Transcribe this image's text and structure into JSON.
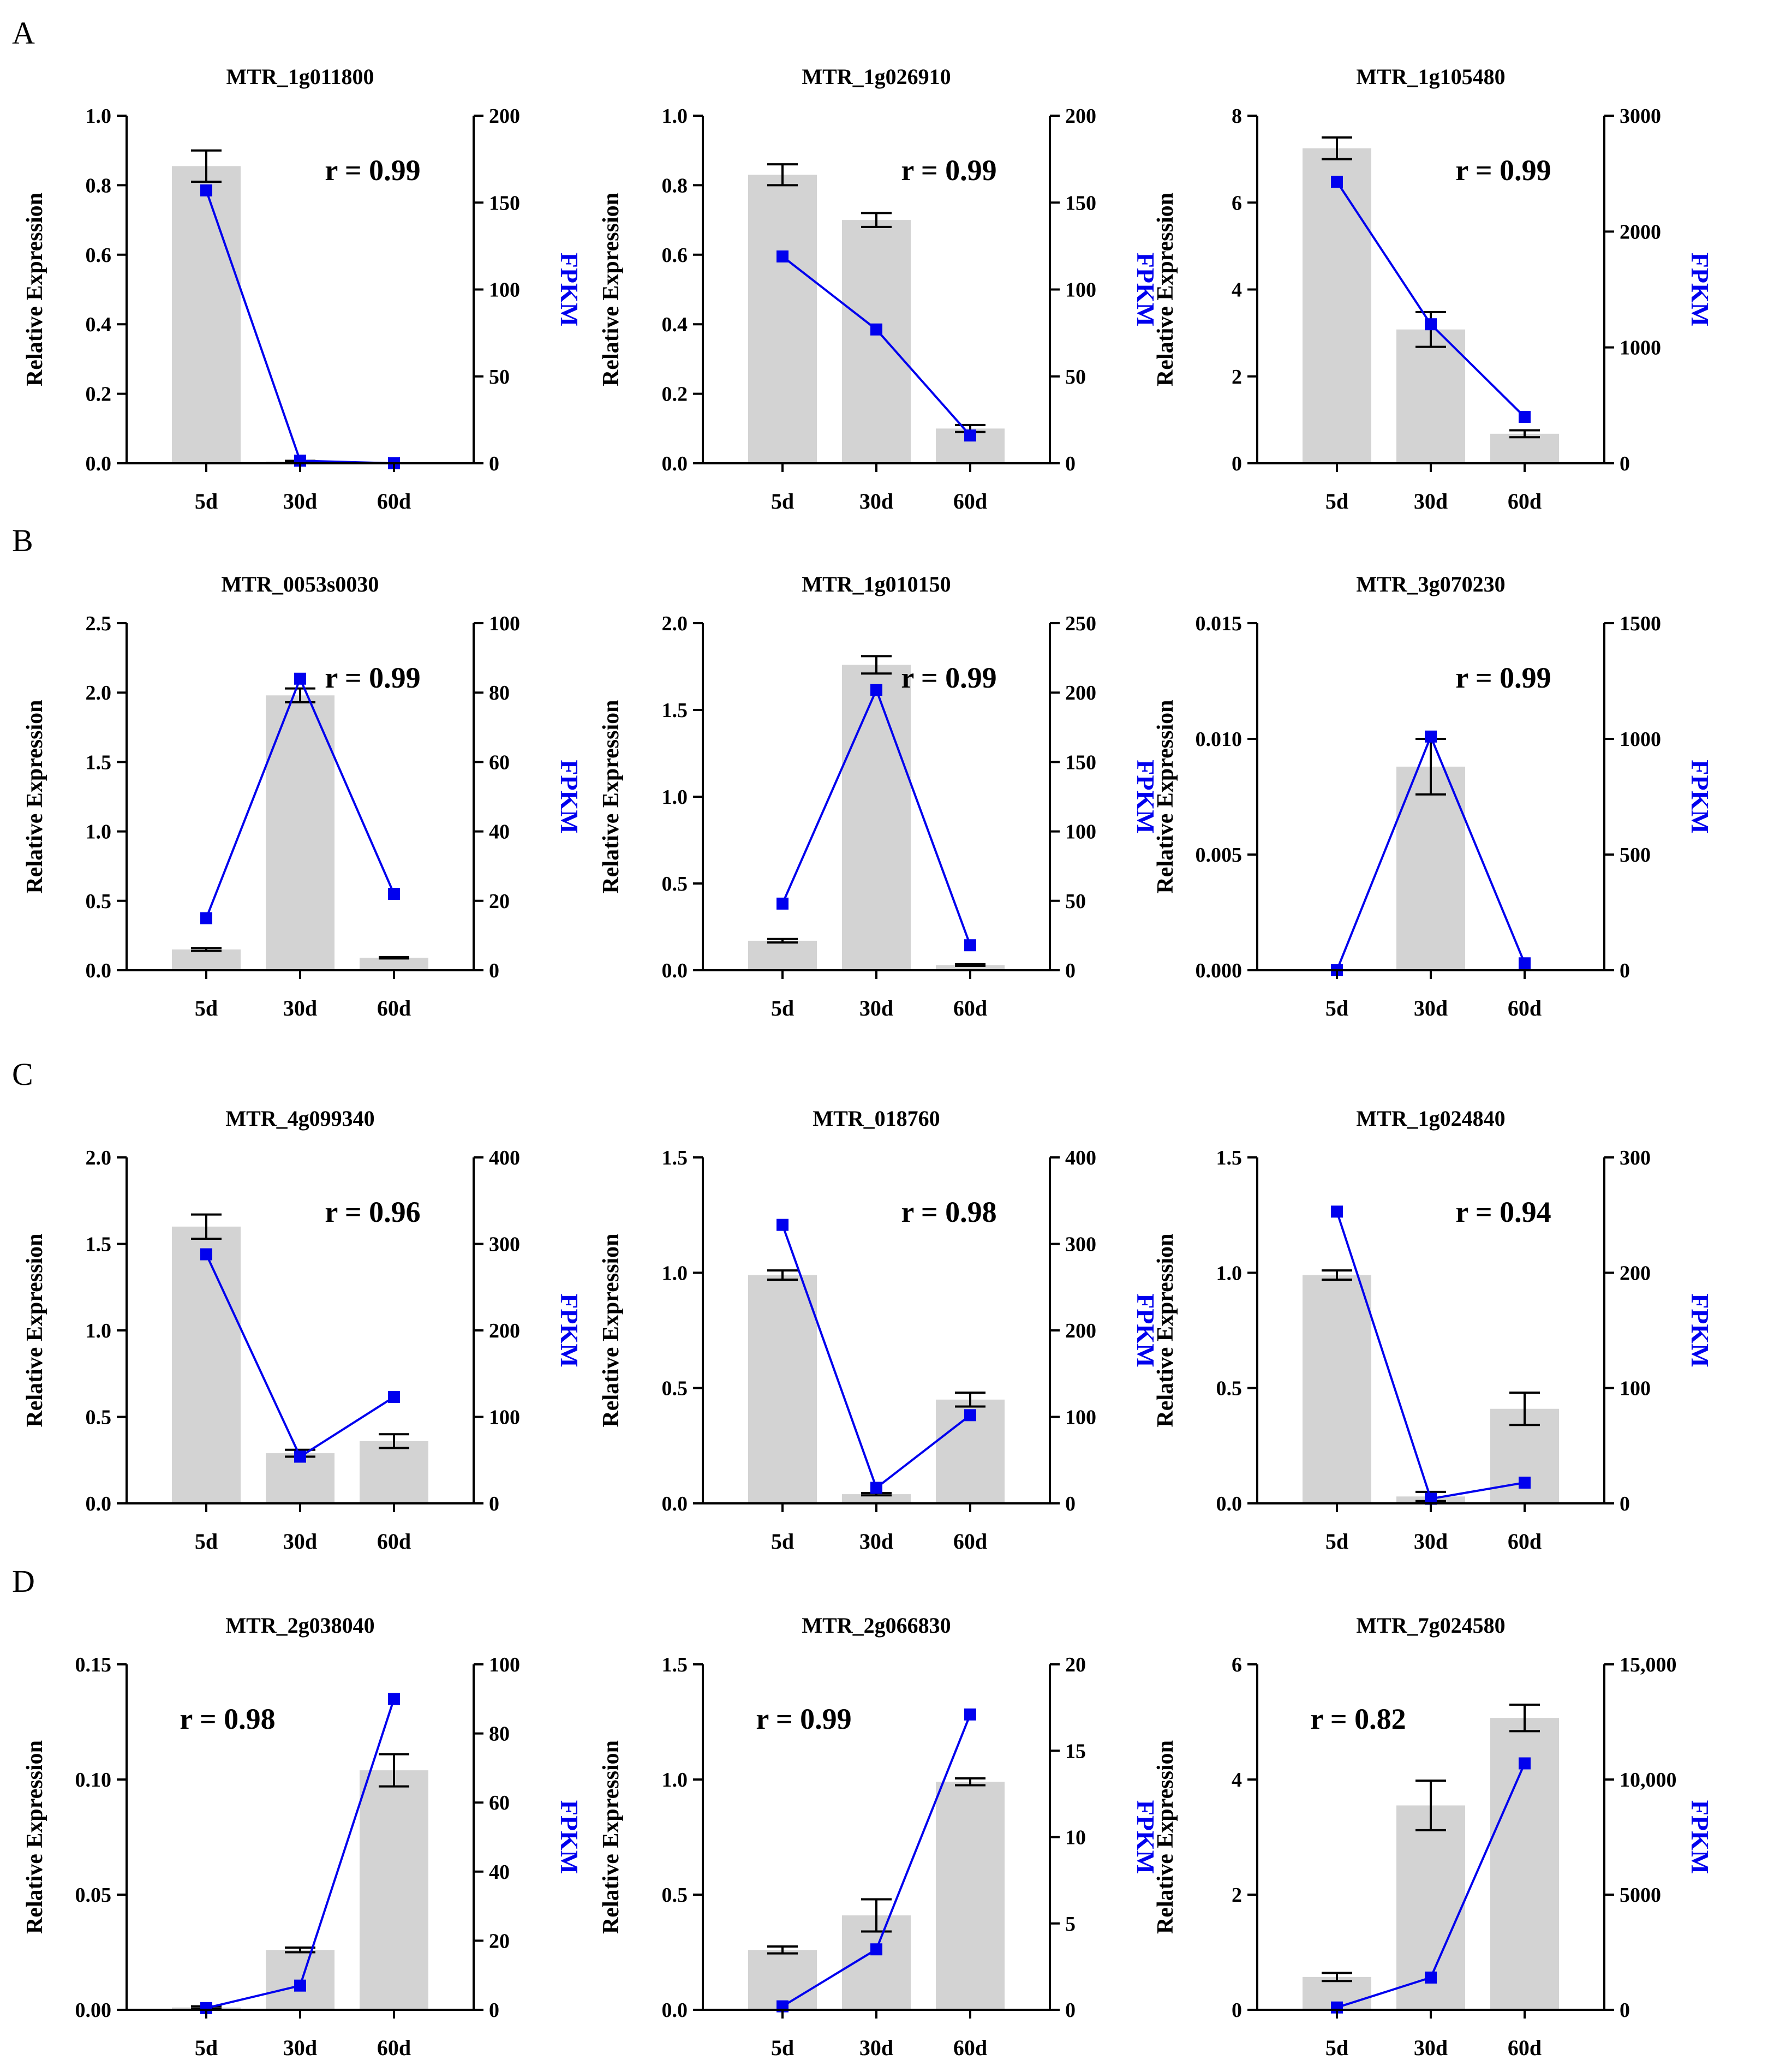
{
  "figure": {
    "panel_letters": [
      "A",
      "B",
      "C",
      "D"
    ]
  },
  "colors": {
    "bar": "#d3d3d3",
    "line": "#0000ee",
    "axis": "#000000",
    "fpkm_label": "#0000ee"
  },
  "chart_data": [
    {
      "panel": "A",
      "type": "bar+line",
      "title": "MTR_1g011800",
      "categories": [
        "5d",
        "30d",
        "60d"
      ],
      "bars": {
        "name": "Relative Expression",
        "values": [
          0.855,
          0.005,
          0.0
        ],
        "errors": [
          0.045,
          0.002,
          0.0
        ]
      },
      "line": {
        "name": "FPKM",
        "values": [
          157,
          1.5,
          0
        ]
      },
      "ylabel_left": "Relative Expression",
      "ylabel_right": "FPKM",
      "ylim_left": [
        0,
        1.0
      ],
      "ticks_left": [
        "0.0",
        "0.2",
        "0.4",
        "0.6",
        "0.8",
        "1.0"
      ],
      "ylim_right": [
        0,
        200
      ],
      "ticks_right": [
        "0",
        "50",
        "100",
        "150",
        "200"
      ],
      "annotation": "r = 0.99",
      "annotation_position": "top-right"
    },
    {
      "panel": "A",
      "type": "bar+line",
      "title": "MTR_1g026910",
      "categories": [
        "5d",
        "30d",
        "60d"
      ],
      "bars": {
        "name": "Relative Expression",
        "values": [
          0.83,
          0.7,
          0.1
        ],
        "errors": [
          0.03,
          0.02,
          0.01
        ]
      },
      "line": {
        "name": "FPKM",
        "values": [
          119,
          77,
          16
        ]
      },
      "ylabel_left": "Relative Expression",
      "ylabel_right": "FPKM",
      "ylim_left": [
        0,
        1.0
      ],
      "ticks_left": [
        "0.0",
        "0.2",
        "0.4",
        "0.6",
        "0.8",
        "1.0"
      ],
      "ylim_right": [
        0,
        200
      ],
      "ticks_right": [
        "0",
        "50",
        "100",
        "150",
        "200"
      ],
      "annotation": "r = 0.99",
      "annotation_position": "top-right"
    },
    {
      "panel": "A",
      "type": "bar+line",
      "title": "MTR_1g105480",
      "categories": [
        "5d",
        "30d",
        "60d"
      ],
      "bars": {
        "name": "Relative Expression",
        "values": [
          7.25,
          3.08,
          0.68
        ],
        "errors": [
          0.25,
          0.4,
          0.08
        ]
      },
      "line": {
        "name": "FPKM",
        "values": [
          2430,
          1200,
          400
        ]
      },
      "ylabel_left": "Relative Expression",
      "ylabel_right": "FPKM",
      "ylim_left": [
        0,
        8
      ],
      "ticks_left": [
        "0",
        "2",
        "4",
        "6",
        "8"
      ],
      "ylim_right": [
        0,
        3000
      ],
      "ticks_right": [
        "0",
        "1000",
        "2000",
        "3000"
      ],
      "annotation": "r = 0.99",
      "annotation_position": "top-right"
    },
    {
      "panel": "B",
      "type": "bar+line",
      "title": "MTR_0053s0030",
      "categories": [
        "5d",
        "30d",
        "60d"
      ],
      "bars": {
        "name": "Relative Expression",
        "values": [
          0.15,
          1.98,
          0.09
        ],
        "errors": [
          0.01,
          0.05,
          0.005
        ]
      },
      "line": {
        "name": "FPKM",
        "values": [
          15,
          84,
          22
        ]
      },
      "ylabel_left": "Relative Expression",
      "ylabel_right": "FPKM",
      "ylim_left": [
        0,
        2.5
      ],
      "ticks_left": [
        "0.0",
        "0.5",
        "1.0",
        "1.5",
        "2.0",
        "2.5"
      ],
      "ylim_right": [
        0,
        100
      ],
      "ticks_right": [
        "0",
        "20",
        "40",
        "60",
        "80",
        "100"
      ],
      "annotation": "r = 0.99",
      "annotation_position": "top-right"
    },
    {
      "panel": "B",
      "type": "bar+line",
      "title": "MTR_1g010150",
      "categories": [
        "5d",
        "30d",
        "60d"
      ],
      "bars": {
        "name": "Relative Expression",
        "values": [
          0.17,
          1.76,
          0.03
        ],
        "errors": [
          0.01,
          0.05,
          0.005
        ]
      },
      "line": {
        "name": "FPKM",
        "values": [
          48,
          202,
          18
        ]
      },
      "ylabel_left": "Relative Expression",
      "ylabel_right": "FPKM",
      "ylim_left": [
        0,
        2.0
      ],
      "ticks_left": [
        "0.0",
        "0.5",
        "1.0",
        "1.5",
        "2.0"
      ],
      "ylim_right": [
        0,
        250
      ],
      "ticks_right": [
        "0",
        "50",
        "100",
        "150",
        "200",
        "250"
      ],
      "annotation": "r = 0.99",
      "annotation_position": "top-right"
    },
    {
      "panel": "B",
      "type": "bar+line",
      "title": "MTR_3g070230",
      "categories": [
        "5d",
        "30d",
        "60d"
      ],
      "bars": {
        "name": "Relative Expression",
        "values": [
          0.0,
          0.0088,
          0.0
        ],
        "errors": [
          0.0,
          0.0012,
          0.0
        ]
      },
      "line": {
        "name": "FPKM",
        "values": [
          0,
          1010,
          30
        ]
      },
      "ylabel_left": "Relative Expression",
      "ylabel_right": "FPKM",
      "ylim_left": [
        0,
        0.015
      ],
      "ticks_left": [
        "0.000",
        "0.005",
        "0.010",
        "0.015"
      ],
      "ylim_right": [
        0,
        1500
      ],
      "ticks_right": [
        "0",
        "500",
        "1000",
        "1500"
      ],
      "annotation": "r = 0.99",
      "annotation_position": "top-right"
    },
    {
      "panel": "C",
      "type": "bar+line",
      "title": "MTR_4g099340",
      "categories": [
        "5d",
        "30d",
        "60d"
      ],
      "bars": {
        "name": "Relative Expression",
        "values": [
          1.6,
          0.29,
          0.36
        ],
        "errors": [
          0.07,
          0.02,
          0.04
        ]
      },
      "line": {
        "name": "FPKM",
        "values": [
          288,
          54,
          123
        ]
      },
      "ylabel_left": "Relative Expression",
      "ylabel_right": "FPKM",
      "ylim_left": [
        0,
        2.0
      ],
      "ticks_left": [
        "0.0",
        "0.5",
        "1.0",
        "1.5",
        "2.0"
      ],
      "ylim_right": [
        0,
        400
      ],
      "ticks_right": [
        "0",
        "100",
        "200",
        "300",
        "400"
      ],
      "annotation": "r = 0.96",
      "annotation_position": "top-right"
    },
    {
      "panel": "C",
      "type": "bar+line",
      "title": "MTR_018760",
      "categories": [
        "5d",
        "30d",
        "60d"
      ],
      "bars": {
        "name": "Relative Expression",
        "values": [
          0.99,
          0.04,
          0.45
        ],
        "errors": [
          0.02,
          0.005,
          0.03
        ]
      },
      "line": {
        "name": "FPKM",
        "values": [
          322,
          18,
          102
        ]
      },
      "ylabel_left": "Relative Expression",
      "ylabel_right": "FPKM",
      "ylim_left": [
        0,
        1.5
      ],
      "ticks_left": [
        "0.0",
        "0.5",
        "1.0",
        "1.5"
      ],
      "ylim_right": [
        0,
        400
      ],
      "ticks_right": [
        "0",
        "100",
        "200",
        "300",
        "400"
      ],
      "annotation": "r = 0.98",
      "annotation_position": "top-right"
    },
    {
      "panel": "C",
      "type": "bar+line",
      "title": "MTR_1g024840",
      "categories": [
        "5d",
        "30d",
        "60d"
      ],
      "bars": {
        "name": "Relative Expression",
        "values": [
          0.99,
          0.03,
          0.41
        ],
        "errors": [
          0.02,
          0.02,
          0.07
        ]
      },
      "line": {
        "name": "FPKM",
        "values": [
          253,
          4,
          18
        ]
      },
      "ylabel_left": "Relative Expression",
      "ylabel_right": "FPKM",
      "ylim_left": [
        0,
        1.5
      ],
      "ticks_left": [
        "0.0",
        "0.5",
        "1.0",
        "1.5"
      ],
      "ylim_right": [
        0,
        300
      ],
      "ticks_right": [
        "0",
        "100",
        "200",
        "300"
      ],
      "annotation": "r = 0.94",
      "annotation_position": "top-right"
    },
    {
      "panel": "D",
      "type": "bar+line",
      "title": "MTR_2g038040",
      "categories": [
        "5d",
        "30d",
        "60d"
      ],
      "bars": {
        "name": "Relative Expression",
        "values": [
          0.001,
          0.026,
          0.104
        ],
        "errors": [
          0.0005,
          0.001,
          0.007
        ]
      },
      "line": {
        "name": "FPKM",
        "values": [
          0.5,
          7,
          90
        ]
      },
      "ylabel_left": "Relative Expression",
      "ylabel_right": "FPKM",
      "ylim_left": [
        0,
        0.15
      ],
      "ticks_left": [
        "0.00",
        "0.05",
        "0.10",
        "0.15"
      ],
      "ylim_right": [
        0,
        100
      ],
      "ticks_right": [
        "0",
        "20",
        "40",
        "60",
        "80",
        "100"
      ],
      "annotation": "r = 0.98",
      "annotation_position": "top-left"
    },
    {
      "panel": "D",
      "type": "bar+line",
      "title": "MTR_2g066830",
      "categories": [
        "5d",
        "30d",
        "60d"
      ],
      "bars": {
        "name": "Relative Expression",
        "values": [
          0.26,
          0.41,
          0.99
        ],
        "errors": [
          0.015,
          0.07,
          0.015
        ]
      },
      "line": {
        "name": "FPKM",
        "values": [
          0.2,
          3.5,
          17.1
        ]
      },
      "ylabel_left": "Relative Expression",
      "ylabel_right": "FPKM",
      "ylim_left": [
        0,
        1.5
      ],
      "ticks_left": [
        "0.0",
        "0.5",
        "1.0",
        "1.5"
      ],
      "ylim_right": [
        0,
        20
      ],
      "ticks_right": [
        "0",
        "5",
        "10",
        "15",
        "20"
      ],
      "annotation": "r = 0.99",
      "annotation_position": "top-left"
    },
    {
      "panel": "D",
      "type": "bar+line",
      "title": "MTR_7g024580",
      "categories": [
        "5d",
        "30d",
        "60d"
      ],
      "bars": {
        "name": "Relative Expression",
        "values": [
          0.57,
          3.55,
          5.07
        ],
        "errors": [
          0.07,
          0.43,
          0.23
        ]
      },
      "line": {
        "name": "FPKM",
        "values": [
          100,
          1400,
          10700
        ]
      },
      "ylabel_left": "Relative Expression",
      "ylabel_right": "FPKM",
      "ylim_left": [
        0,
        6
      ],
      "ticks_left": [
        "0",
        "2",
        "4",
        "6"
      ],
      "ylim_right": [
        0,
        15000
      ],
      "ticks_right": [
        "0",
        "5000",
        "10,000",
        "15,000"
      ],
      "annotation": "r = 0.82",
      "annotation_position": "top-left"
    }
  ]
}
